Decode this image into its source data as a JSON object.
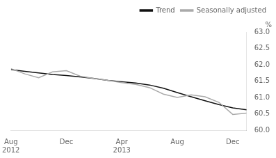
{
  "chart_data": {
    "type": "line",
    "x": [
      0,
      1,
      2,
      3,
      4,
      5,
      6,
      7,
      8,
      9,
      10,
      11,
      12,
      13,
      14,
      15,
      16,
      17
    ],
    "series": [
      {
        "name": "Seasonally adjusted",
        "color": "#aaaaaa",
        "values": [
          61.88,
          61.72,
          61.6,
          61.78,
          61.82,
          61.65,
          61.58,
          61.52,
          61.45,
          61.4,
          61.3,
          61.1,
          61.0,
          61.08,
          61.02,
          60.85,
          60.48,
          60.52
        ]
      },
      {
        "name": "Trend",
        "color": "#111111",
        "values": [
          61.85,
          61.8,
          61.75,
          61.7,
          61.67,
          61.63,
          61.58,
          61.52,
          61.48,
          61.44,
          61.38,
          61.28,
          61.15,
          61.02,
          60.9,
          60.78,
          60.68,
          60.62
        ]
      }
    ],
    "ylabel": "%",
    "xlim": [
      0,
      17
    ],
    "xticks": [
      {
        "value": 0,
        "label": "Aug\n2012"
      },
      {
        "value": 4,
        "label": "Dec"
      },
      {
        "value": 8,
        "label": "Apr\n2013"
      },
      {
        "value": 12,
        "label": "Aug"
      },
      {
        "value": 16,
        "label": "Dec"
      }
    ],
    "ylim": [
      60.0,
      63.0
    ],
    "yticks": [
      {
        "value": 60,
        "label": "60.0"
      },
      60.5,
      {
        "value": 61,
        "label": "61.0"
      },
      61.5,
      {
        "value": 62,
        "label": "62.0"
      },
      62.5,
      {
        "value": 63,
        "label": "63.0"
      }
    ],
    "grid": false,
    "legend": "upper right"
  }
}
